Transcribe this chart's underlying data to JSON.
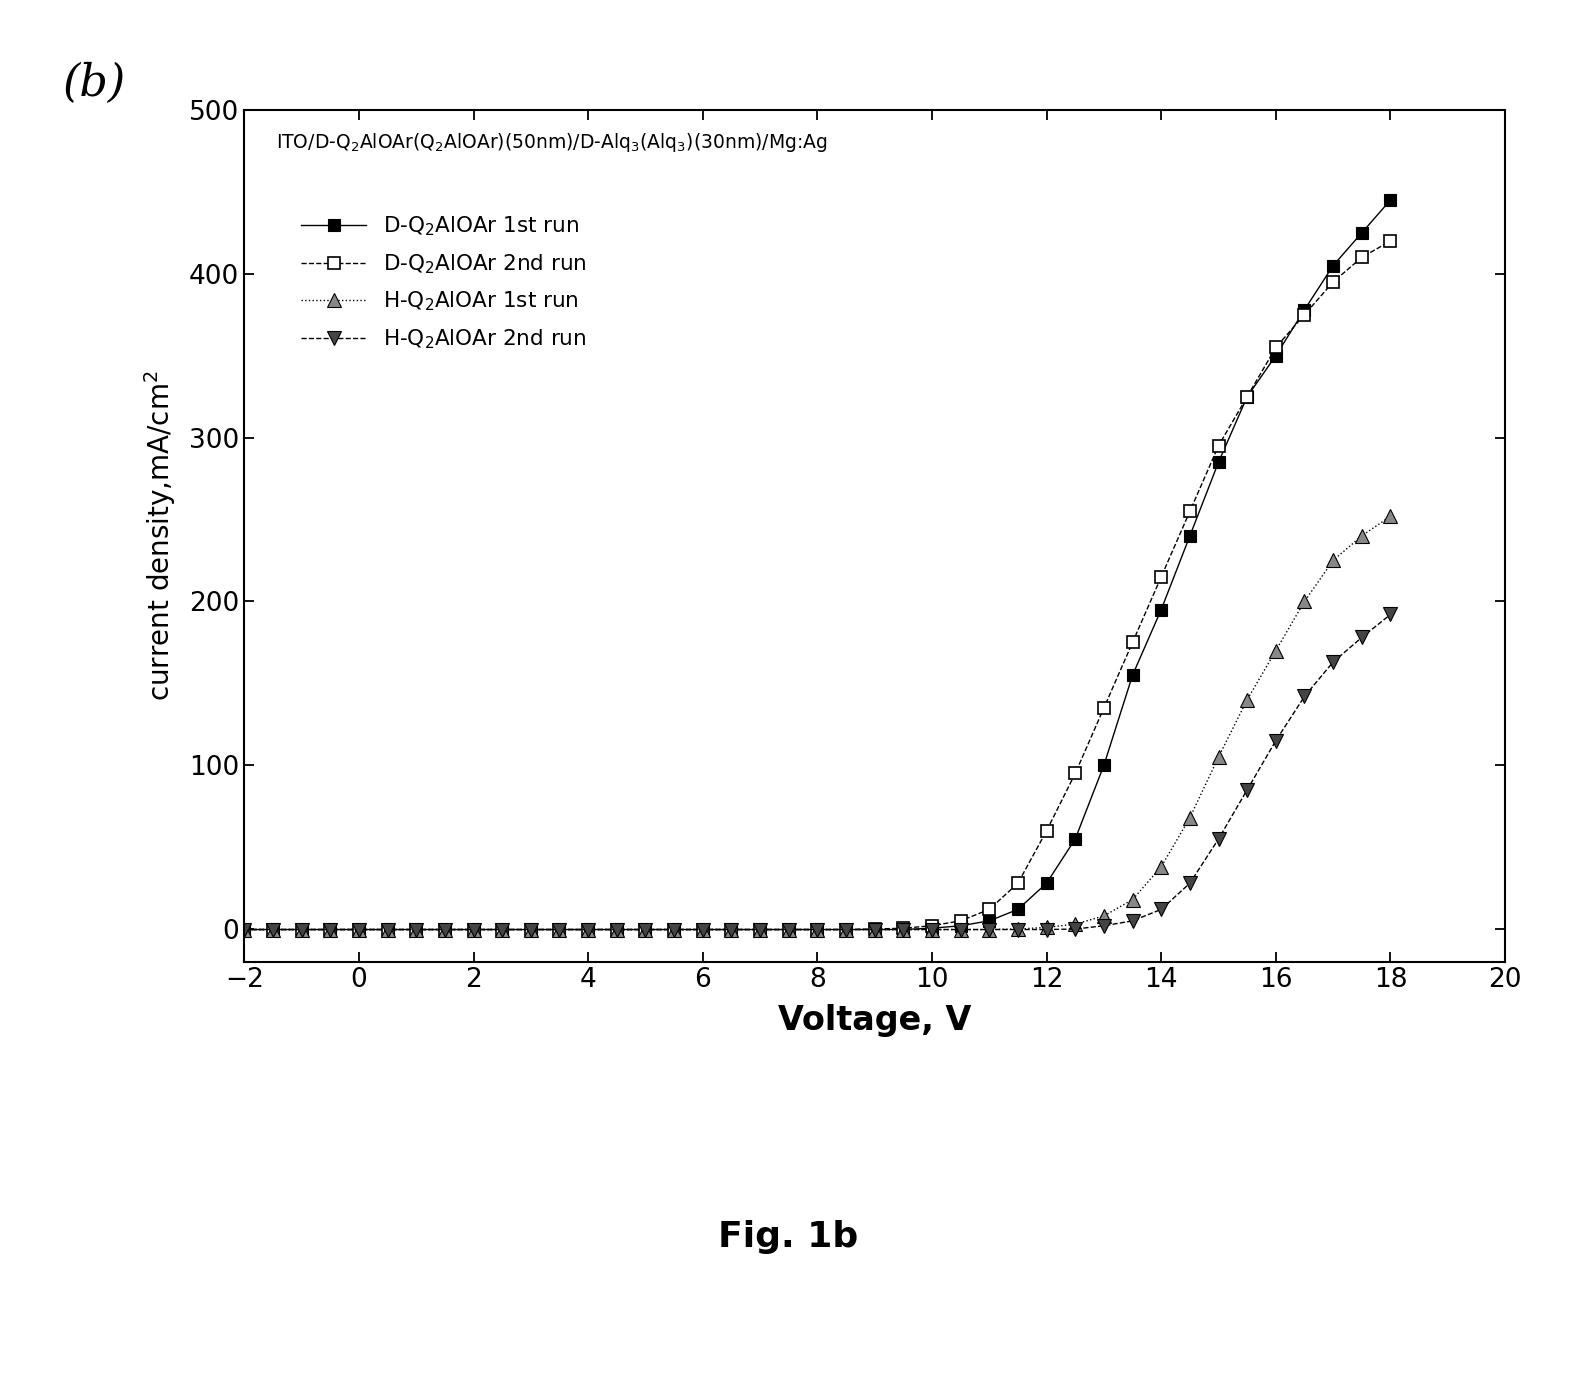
{
  "xlabel": "Voltage, V",
  "ylabel": "current density,mA/cm²",
  "panel_label": "(b)",
  "fig_label": "Fig. 1b",
  "xlim": [
    -2,
    20
  ],
  "ylim": [
    -20,
    500
  ],
  "xticks": [
    -2,
    0,
    2,
    4,
    6,
    8,
    10,
    12,
    14,
    16,
    18,
    20
  ],
  "yticks": [
    0,
    100,
    200,
    300,
    400,
    500
  ],
  "DQ2_1st_V": [
    -2,
    -1.5,
    -1,
    -0.5,
    0,
    0.5,
    1,
    1.5,
    2,
    2.5,
    3,
    3.5,
    4,
    4.5,
    5,
    5.5,
    6,
    6.5,
    7,
    7.5,
    8,
    8.5,
    9,
    9.5,
    10,
    10.5,
    11,
    11.5,
    12,
    12.5,
    13,
    13.5,
    14,
    14.5,
    15,
    15.5,
    16,
    16.5,
    17,
    17.5,
    18
  ],
  "DQ2_1st_I": [
    -0.3,
    -0.3,
    -0.3,
    -0.3,
    -0.3,
    -0.3,
    -0.3,
    -0.3,
    -0.3,
    -0.3,
    -0.3,
    -0.3,
    -0.3,
    -0.3,
    -0.3,
    -0.3,
    -0.3,
    -0.3,
    -0.3,
    -0.3,
    -0.3,
    -0.3,
    -0.3,
    -0.3,
    0.5,
    2,
    5,
    12,
    28,
    55,
    100,
    155,
    195,
    240,
    285,
    325,
    350,
    378,
    405,
    425,
    445
  ],
  "DQ2_2nd_V": [
    -2,
    -1.5,
    -1,
    -0.5,
    0,
    0.5,
    1,
    1.5,
    2,
    2.5,
    3,
    3.5,
    4,
    4.5,
    5,
    5.5,
    6,
    6.5,
    7,
    7.5,
    8,
    8.5,
    9,
    9.5,
    10,
    10.5,
    11,
    11.5,
    12,
    12.5,
    13,
    13.5,
    14,
    14.5,
    15,
    15.5,
    16,
    16.5,
    17,
    17.5,
    18
  ],
  "DQ2_2nd_I": [
    -0.3,
    -0.3,
    -0.3,
    -0.3,
    -0.3,
    -0.3,
    -0.3,
    -0.3,
    -0.3,
    -0.3,
    -0.3,
    -0.3,
    -0.3,
    -0.3,
    -0.3,
    -0.3,
    -0.3,
    -0.3,
    -0.3,
    -0.3,
    -0.3,
    -0.3,
    0,
    0.5,
    2,
    5,
    12,
    28,
    60,
    95,
    135,
    175,
    215,
    255,
    295,
    325,
    355,
    375,
    395,
    410,
    420
  ],
  "HQ2_1st_V": [
    -2,
    -1.5,
    -1,
    -0.5,
    0,
    0.5,
    1,
    1.5,
    2,
    2.5,
    3,
    3.5,
    4,
    4.5,
    5,
    5.5,
    6,
    6.5,
    7,
    7.5,
    8,
    8.5,
    9,
    9.5,
    10,
    10.5,
    11,
    11.5,
    12,
    12.5,
    13,
    13.5,
    14,
    14.5,
    15,
    15.5,
    16,
    16.5,
    17,
    17.5,
    18
  ],
  "HQ2_1st_I": [
    -0.3,
    -0.3,
    -0.3,
    -0.3,
    -0.3,
    -0.3,
    -0.3,
    -0.3,
    -0.3,
    -0.3,
    -0.3,
    -0.3,
    -0.3,
    -0.3,
    -0.3,
    -0.3,
    -0.3,
    -0.3,
    -0.3,
    -0.3,
    -0.3,
    -0.3,
    -0.3,
    -0.3,
    -0.3,
    -0.3,
    -0.3,
    0,
    1,
    3,
    8,
    18,
    38,
    68,
    105,
    140,
    170,
    200,
    225,
    240,
    252
  ],
  "HQ2_2nd_V": [
    -2,
    -1.5,
    -1,
    -0.5,
    0,
    0.5,
    1,
    1.5,
    2,
    2.5,
    3,
    3.5,
    4,
    4.5,
    5,
    5.5,
    6,
    6.5,
    7,
    7.5,
    8,
    8.5,
    9,
    9.5,
    10,
    10.5,
    11,
    11.5,
    12,
    12.5,
    13,
    13.5,
    14,
    14.5,
    15,
    15.5,
    16,
    16.5,
    17,
    17.5,
    18
  ],
  "HQ2_2nd_I": [
    -0.3,
    -0.3,
    -0.3,
    -0.3,
    -0.3,
    -0.3,
    -0.3,
    -0.3,
    -0.3,
    -0.3,
    -0.3,
    -0.3,
    -0.3,
    -0.3,
    -0.3,
    -0.3,
    -0.3,
    -0.3,
    -0.3,
    -0.3,
    -0.3,
    -0.3,
    -0.3,
    -0.3,
    -0.3,
    -0.3,
    -0.3,
    -0.3,
    -0.3,
    0,
    2,
    5,
    12,
    28,
    55,
    85,
    115,
    142,
    163,
    178,
    192
  ],
  "background_color": "#ffffff",
  "figsize": [
    15.76,
    13.74
  ],
  "dpi": 100
}
